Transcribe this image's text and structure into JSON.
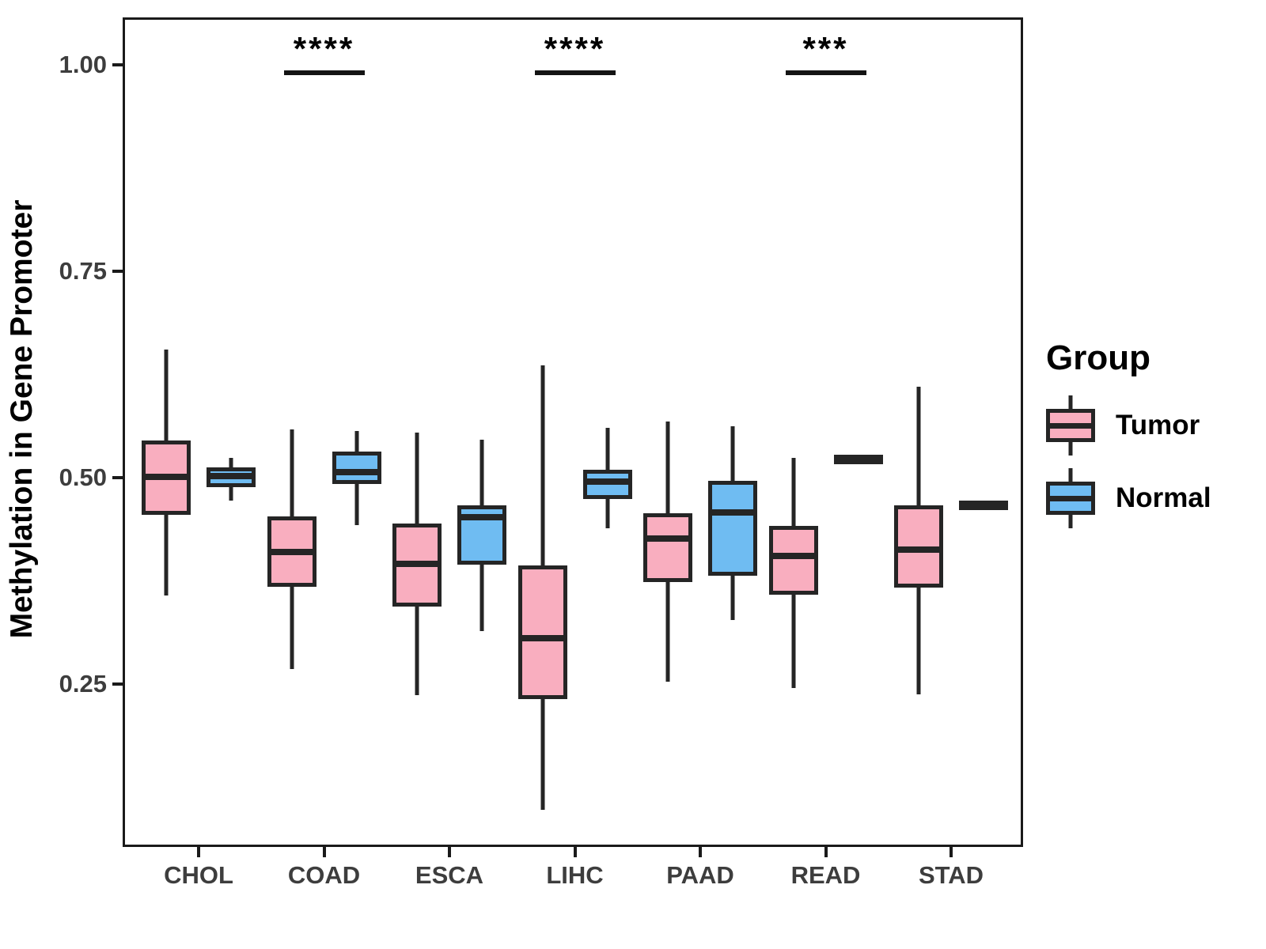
{
  "chart_data": {
    "type": "boxplot-grouped",
    "title": "",
    "xlabel": "",
    "ylabel": "Methylation in Gene Promoter",
    "categories": [
      "CHOL",
      "COAD",
      "ESCA",
      "LIHC",
      "PAAD",
      "READ",
      "STAD"
    ],
    "groups": [
      "Tumor",
      "Normal"
    ],
    "ylim": [
      0.053,
      1.057
    ],
    "yticks": [
      0.25,
      0.5,
      0.75,
      1.0
    ],
    "ytick_labels": [
      "0.25",
      "0.50",
      "0.75",
      "1.00"
    ],
    "grid": "off",
    "colors": {
      "tumor_fill": "#F9AEBF",
      "normal_fill": "#6FBCF2",
      "stroke": "#252525",
      "text": "#3d3d3d"
    },
    "series": [
      {
        "name": "Tumor",
        "boxes": [
          {
            "category": "CHOL",
            "whisker_low": 0.357,
            "q1": 0.455,
            "median": 0.501,
            "q3": 0.545,
            "whisker_high": 0.655
          },
          {
            "category": "COAD",
            "whisker_low": 0.268,
            "q1": 0.368,
            "median": 0.41,
            "q3": 0.453,
            "whisker_high": 0.558
          },
          {
            "category": "ESCA",
            "whisker_low": 0.237,
            "q1": 0.344,
            "median": 0.396,
            "q3": 0.444,
            "whisker_high": 0.555
          },
          {
            "category": "LIHC",
            "whisker_low": 0.098,
            "q1": 0.232,
            "median": 0.306,
            "q3": 0.394,
            "whisker_high": 0.636
          },
          {
            "category": "PAAD",
            "whisker_low": 0.253,
            "q1": 0.374,
            "median": 0.426,
            "q3": 0.457,
            "whisker_high": 0.568
          },
          {
            "category": "READ",
            "whisker_low": 0.245,
            "q1": 0.358,
            "median": 0.405,
            "q3": 0.442,
            "whisker_high": 0.524
          },
          {
            "category": "STAD",
            "whisker_low": 0.238,
            "q1": 0.367,
            "median": 0.413,
            "q3": 0.466,
            "whisker_high": 0.61
          }
        ]
      },
      {
        "name": "Normal",
        "boxes": [
          {
            "category": "CHOL",
            "whisker_low": 0.472,
            "q1": 0.488,
            "median": 0.502,
            "q3": 0.512,
            "whisker_high": 0.524
          },
          {
            "category": "COAD",
            "whisker_low": 0.443,
            "q1": 0.492,
            "median": 0.507,
            "q3": 0.532,
            "whisker_high": 0.556
          },
          {
            "category": "ESCA",
            "whisker_low": 0.314,
            "q1": 0.395,
            "median": 0.452,
            "q3": 0.466,
            "whisker_high": 0.546
          },
          {
            "category": "LIHC",
            "whisker_low": 0.439,
            "q1": 0.474,
            "median": 0.495,
            "q3": 0.51,
            "whisker_high": 0.56
          },
          {
            "category": "PAAD",
            "whisker_low": 0.328,
            "q1": 0.381,
            "median": 0.458,
            "q3": 0.496,
            "whisker_high": 0.562
          },
          {
            "category": "READ",
            "whisker_low": 0.52,
            "q1": 0.522,
            "median": 0.524,
            "q3": 0.526,
            "whisker_high": 0.528
          },
          {
            "category": "STAD",
            "whisker_low": 0.464,
            "q1": 0.466,
            "median": 0.468,
            "q3": 0.47,
            "whisker_high": 0.472
          }
        ]
      }
    ],
    "annotations": [
      {
        "category": "COAD",
        "label": "****"
      },
      {
        "category": "LIHC",
        "label": "****"
      },
      {
        "category": "READ",
        "label": "***"
      }
    ],
    "legend": {
      "title": "Group",
      "position": "right",
      "entries": [
        {
          "label": "Tumor",
          "fill": "#F9AEBF"
        },
        {
          "label": "Normal",
          "fill": "#6FBCF2"
        }
      ]
    }
  }
}
